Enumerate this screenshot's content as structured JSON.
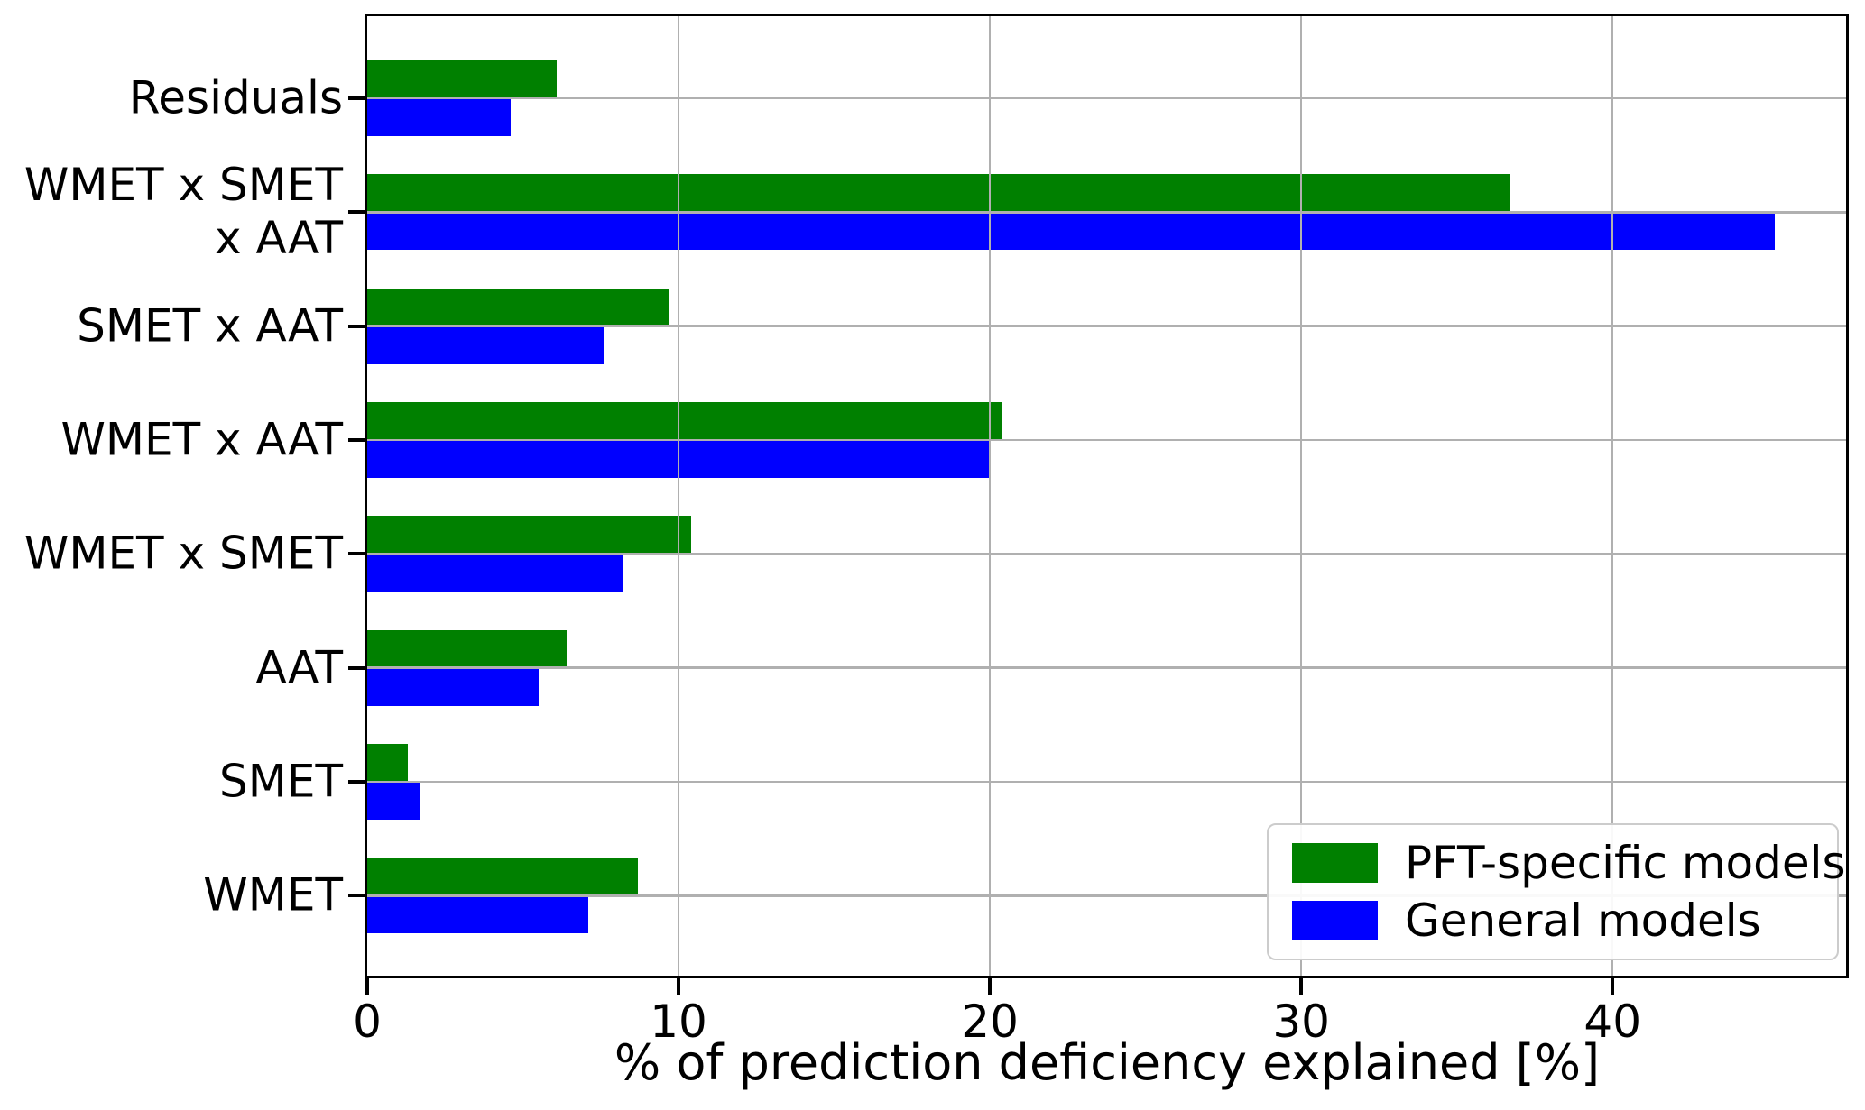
{
  "chart_data": {
    "type": "bar",
    "orientation": "horizontal",
    "title": "",
    "xlabel": "% of prediction deficiency explained [%]",
    "ylabel": "",
    "categories": [
      "Residuals",
      "WMET x SMET\nx AAT",
      "SMET x AAT",
      "WMET x AAT",
      "WMET x SMET",
      "AAT",
      "SMET",
      "WMET"
    ],
    "series": [
      {
        "name": "PFT-specific models",
        "color": "#008000",
        "values": [
          6.1,
          36.7,
          9.7,
          20.4,
          10.4,
          6.4,
          1.3,
          8.7
        ]
      },
      {
        "name": "General models",
        "color": "#0000ff",
        "values": [
          4.6,
          45.2,
          7.6,
          20.0,
          8.2,
          5.5,
          1.7,
          7.1
        ]
      }
    ],
    "xlim": [
      0,
      47.5
    ],
    "xticks": [
      0,
      10,
      20,
      30,
      40
    ],
    "xtick_labels": [
      "0",
      "10",
      "20",
      "30",
      "40"
    ],
    "grid": true,
    "grid_color": "#b0b0b0",
    "grid_above_bars": true,
    "background_color": "#ffffff",
    "axis_color": "#000000",
    "legend": {
      "position": "lower right",
      "items": [
        {
          "label": "PFT-specific models",
          "color": "#008000"
        },
        {
          "label": "General models",
          "color": "#0000ff"
        }
      ]
    }
  }
}
